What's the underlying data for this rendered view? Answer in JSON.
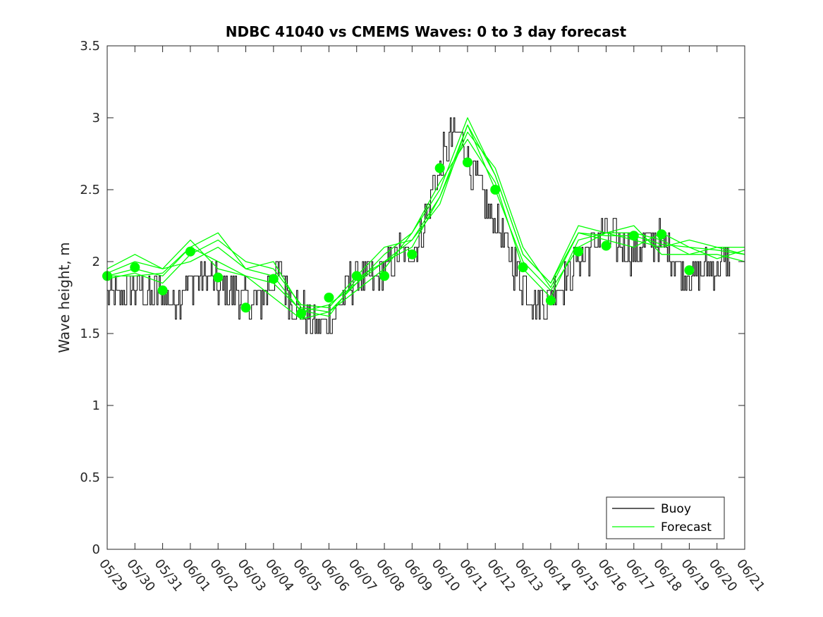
{
  "chart_data": {
    "type": "line",
    "title": "NDBC 41040 vs CMEMS Waves: 0 to 3 day forecast",
    "xlabel": "",
    "ylabel": "Wave height, m",
    "ylim": [
      0,
      3.5
    ],
    "yticks": [
      "0",
      "0.5",
      "1",
      "1.5",
      "2",
      "2.5",
      "3",
      "3.5"
    ],
    "xticks": [
      "05/29",
      "05/30",
      "05/31",
      "06/01",
      "06/02",
      "06/03",
      "06/04",
      "06/05",
      "06/06",
      "06/07",
      "06/08",
      "06/09",
      "06/10",
      "06/11",
      "06/12",
      "06/13",
      "06/14",
      "06/15",
      "06/16",
      "06/17",
      "06/18",
      "06/19",
      "06/20",
      "06/21"
    ],
    "xlim_days": [
      0,
      23
    ],
    "legend": {
      "placement": "bottom-right",
      "entries": [
        "Buoy",
        "Forecast"
      ]
    },
    "colors": {
      "buoy": "#000000",
      "forecast": "#00ff00"
    },
    "buoy_anchor_points": {
      "x_day": [
        0,
        0.5,
        1,
        1.5,
        2,
        2.4,
        2.8,
        3,
        3.3,
        3.6,
        3.9,
        4.2,
        4.5,
        4.9,
        5.3,
        5.6,
        5.9,
        6.2,
        6.5,
        6.8,
        7,
        7.3,
        7.6,
        7.9,
        8.2,
        8.6,
        8.9,
        9.2,
        9.6,
        9.9,
        10.2,
        10.5,
        10.8,
        11.2,
        11.5,
        11.8,
        12.1,
        12.4,
        12.7,
        13,
        13.3,
        13.6,
        13.9,
        14.2,
        14.6,
        15,
        15.3,
        15.7,
        16,
        16.3,
        16.6,
        16.9,
        17.2,
        17.5,
        17.8,
        18.2,
        18.6,
        19,
        19.4,
        19.8,
        20.2,
        20.6,
        21,
        21.5,
        22,
        22.5
      ],
      "y_m": [
        1.75,
        1.75,
        1.8,
        1.75,
        1.8,
        1.7,
        1.85,
        1.85,
        1.9,
        1.9,
        1.85,
        1.8,
        1.8,
        1.75,
        1.7,
        1.75,
        1.85,
        1.95,
        1.8,
        1.7,
        1.65,
        1.6,
        1.55,
        1.6,
        1.65,
        1.8,
        1.9,
        1.9,
        1.85,
        1.9,
        1.95,
        2.05,
        2.05,
        2.1,
        2.35,
        2.55,
        2.7,
        2.85,
        2.9,
        2.75,
        2.55,
        2.4,
        2.3,
        2.2,
        2.0,
        1.85,
        1.75,
        1.72,
        1.75,
        1.85,
        1.9,
        2.0,
        2.05,
        2.1,
        2.2,
        2.15,
        2.1,
        2.05,
        2.1,
        2.15,
        2.1,
        1.95,
        1.9,
        1.95,
        1.95,
        2.0
      ]
    },
    "forecast_series": [
      {
        "x_day": [
          0,
          1,
          2,
          3,
          4,
          5,
          6,
          7,
          8,
          9,
          10,
          11,
          12,
          13,
          14,
          15,
          16,
          17,
          18,
          19,
          20,
          21,
          22,
          23
        ],
        "y_m": [
          1.95,
          2.05,
          1.95,
          2.15,
          1.95,
          1.9,
          1.75,
          1.6,
          1.65,
          1.85,
          2.0,
          2.15,
          2.4,
          2.95,
          2.5,
          2.0,
          1.8,
          2.1,
          2.2,
          2.15,
          2.1,
          2.15,
          2.1,
          2.05
        ]
      },
      {
        "x_day": [
          0,
          1,
          2,
          3,
          4,
          5,
          6,
          7,
          8,
          9,
          10,
          11,
          12,
          13,
          14,
          15,
          16,
          17,
          18,
          19,
          20,
          21,
          22,
          23
        ],
        "y_m": [
          1.9,
          1.95,
          1.9,
          2.1,
          2.2,
          1.95,
          1.9,
          1.65,
          1.7,
          1.85,
          2.05,
          2.2,
          2.5,
          3.0,
          2.6,
          2.05,
          1.85,
          2.25,
          2.2,
          2.2,
          2.15,
          2.05,
          2.05,
          2.0
        ]
      },
      {
        "x_day": [
          0,
          1,
          2,
          3,
          4,
          5,
          6,
          7,
          8,
          9,
          10,
          11,
          12,
          13,
          14,
          15,
          16,
          17,
          18,
          19,
          20,
          21,
          22,
          23
        ],
        "y_m": [
          1.88,
          1.92,
          1.85,
          2.05,
          2.15,
          2.0,
          1.95,
          1.7,
          1.68,
          1.9,
          2.1,
          2.15,
          2.45,
          2.9,
          2.65,
          2.1,
          1.82,
          2.2,
          2.15,
          2.1,
          2.2,
          2.1,
          2.08,
          2.05
        ]
      },
      {
        "x_day": [
          0,
          1,
          2,
          3,
          4,
          5,
          6,
          7,
          8,
          9,
          10,
          11,
          12,
          13,
          14,
          15,
          16,
          17,
          18,
          19,
          20,
          21,
          22,
          23
        ],
        "y_m": [
          1.92,
          2.0,
          1.95,
          2.0,
          2.1,
          1.95,
          2.0,
          1.68,
          1.65,
          1.8,
          1.95,
          2.2,
          2.55,
          2.85,
          2.55,
          1.95,
          1.75,
          2.15,
          2.2,
          2.25,
          2.05,
          2.05,
          2.1,
          2.1
        ]
      },
      {
        "x_day": [
          0,
          1,
          2,
          3,
          4,
          5,
          6,
          7,
          8,
          9,
          10,
          11,
          12,
          13,
          14,
          15,
          16,
          17,
          18,
          19,
          20,
          21,
          22,
          23
        ],
        "y_m": [
          1.9,
          1.9,
          1.92,
          2.1,
          2.0,
          1.9,
          1.85,
          1.66,
          1.62,
          1.88,
          2.0,
          2.1,
          2.45,
          2.95,
          2.6,
          2.05,
          1.85,
          2.2,
          2.18,
          2.18,
          2.12,
          2.1,
          2.02,
          2.08
        ]
      }
    ],
    "forecast_markers": {
      "x_day": [
        0,
        1,
        2,
        3,
        4,
        5,
        6,
        7,
        8,
        9,
        10,
        11,
        12,
        13,
        14,
        15,
        16,
        17,
        18,
        19,
        20,
        21
      ],
      "y_m": [
        1.9,
        1.96,
        1.8,
        2.07,
        1.89,
        1.68,
        1.88,
        1.64,
        1.75,
        1.9,
        1.9,
        2.05,
        2.65,
        2.69,
        2.5,
        1.96,
        1.73,
        2.07,
        2.11,
        2.18,
        2.19,
        1.94
      ]
    }
  }
}
